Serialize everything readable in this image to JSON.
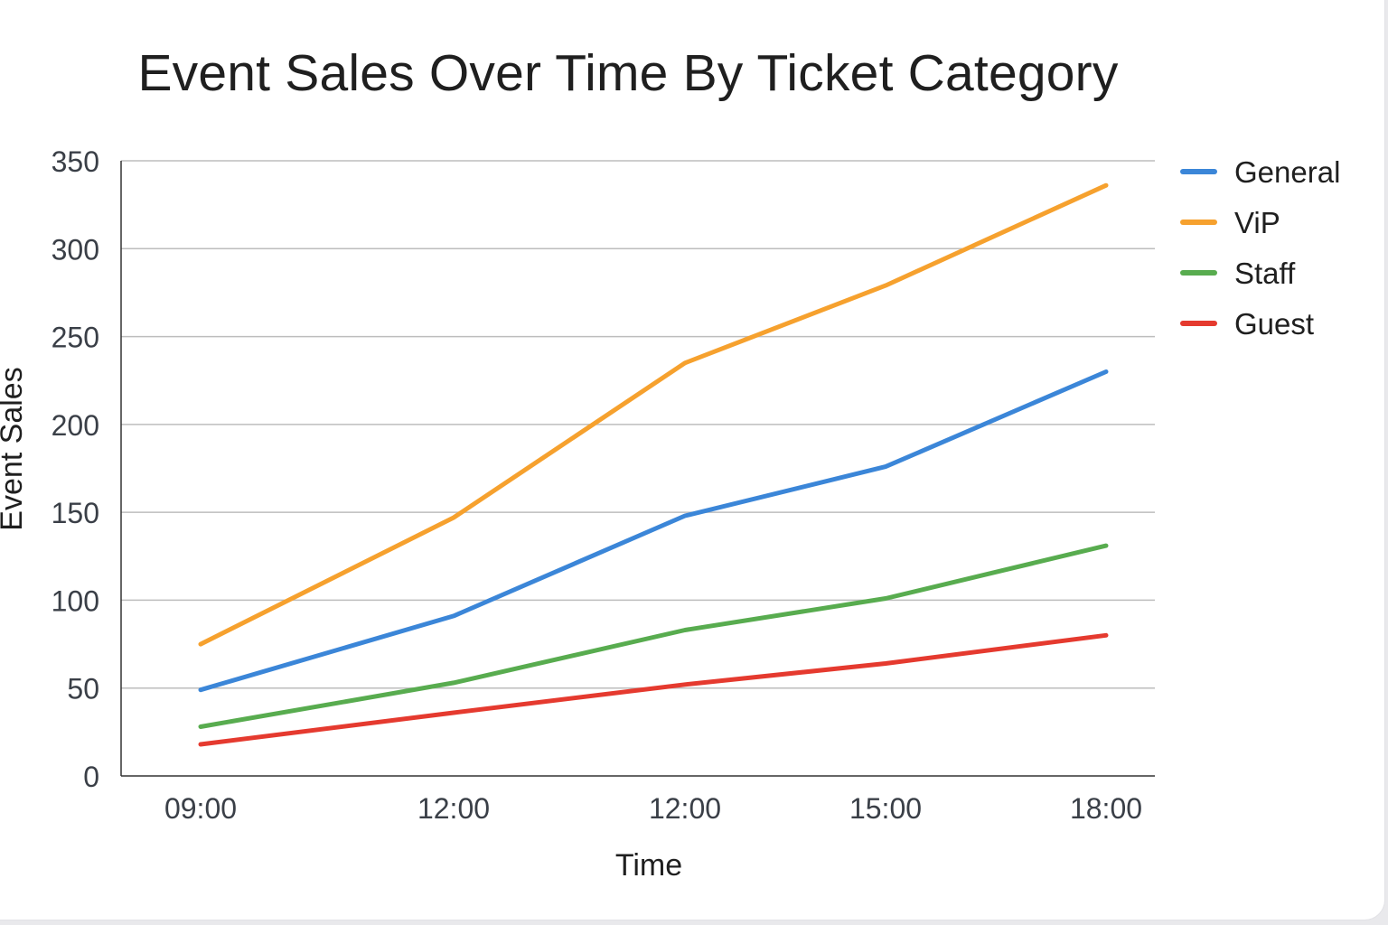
{
  "chart_data": {
    "type": "line",
    "title": "Event Sales Over Time By Ticket Category",
    "xlabel": "Time",
    "ylabel": "Event Sales",
    "categories": [
      "09:00",
      "12:00",
      "12:00",
      "15:00",
      "18:00"
    ],
    "ylim": [
      0,
      350
    ],
    "yticks": [
      0,
      50,
      100,
      150,
      200,
      250,
      300,
      350
    ],
    "grid": true,
    "legend": "right",
    "series": [
      {
        "name": "General",
        "color": "#3b86d8",
        "values": [
          49,
          91,
          148,
          176,
          230
        ]
      },
      {
        "name": "ViP",
        "color": "#f6a12e",
        "values": [
          75,
          147,
          235,
          279,
          336
        ]
      },
      {
        "name": "Staff",
        "color": "#58ac4f",
        "values": [
          28,
          53,
          83,
          101,
          131
        ]
      },
      {
        "name": "Guest",
        "color": "#e53a2f",
        "values": [
          18,
          36,
          52,
          64,
          80
        ]
      }
    ]
  }
}
